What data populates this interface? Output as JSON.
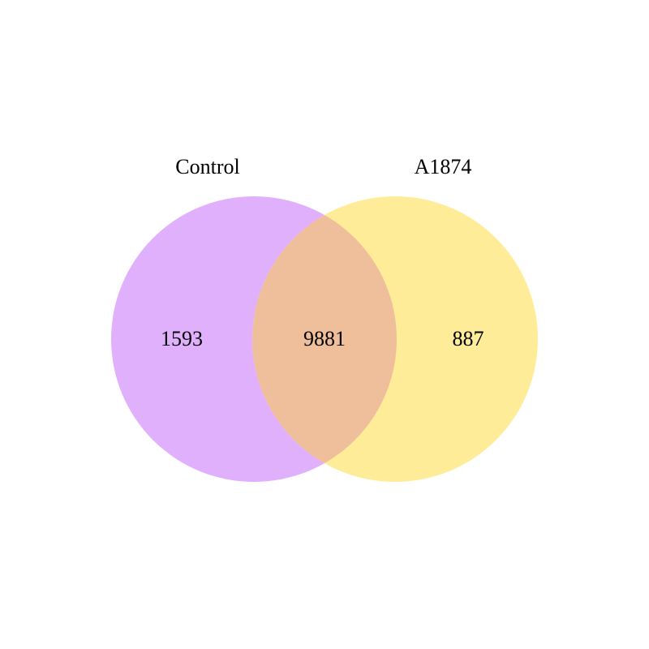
{
  "diagram": {
    "type": "venn",
    "sets": [
      {
        "name": "Control",
        "only_count": "1593",
        "color": "#e0b0fc"
      },
      {
        "name": "A1874",
        "only_count": "887",
        "color": "#ffec99"
      }
    ],
    "intersection": {
      "count": "9881",
      "color": "#efbf9b"
    }
  },
  "chart_data": {
    "type": "venn",
    "sets": [
      "Control",
      "A1874"
    ],
    "values": {
      "Control_only": 1593,
      "A1874_only": 887,
      "Control_and_A1874": 9881
    }
  }
}
